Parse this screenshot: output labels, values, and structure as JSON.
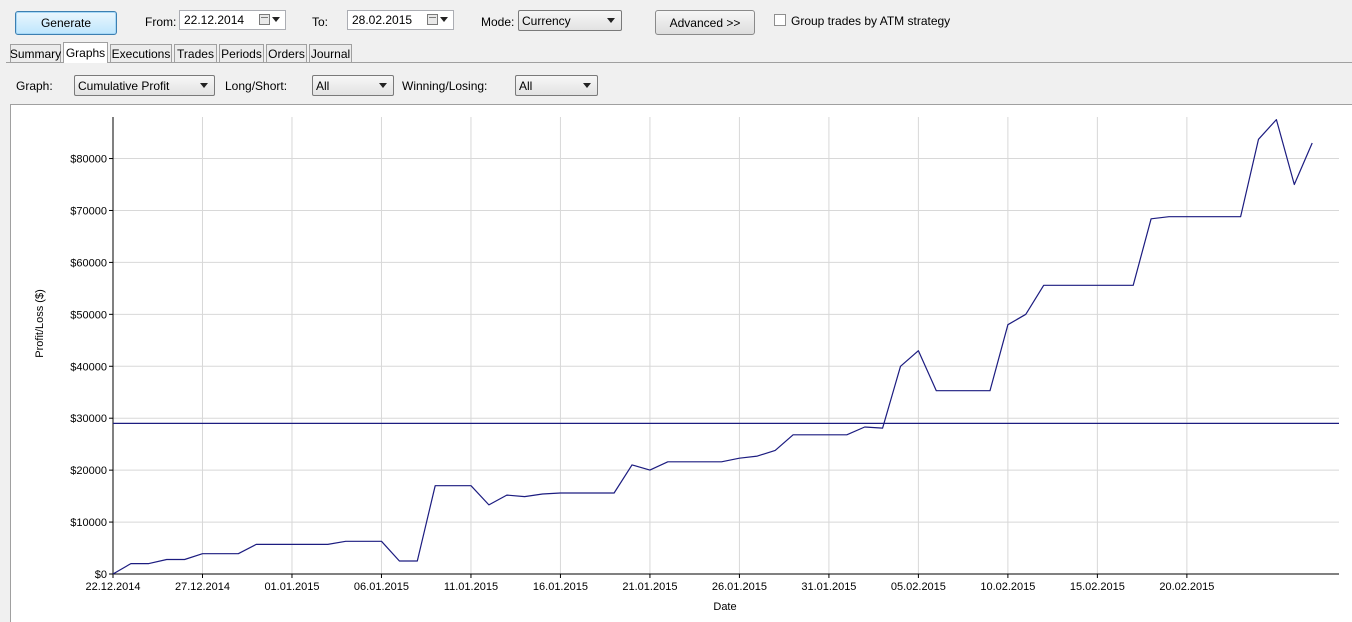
{
  "toolbar": {
    "generate_label": "Generate",
    "from_label": "From:",
    "from_value": "22.12.2014",
    "to_label": "To:",
    "to_value": "28.02.2015",
    "mode_label": "Mode:",
    "mode_value": "Currency",
    "advanced_label": "Advanced >>",
    "group_trades_label": "Group trades by ATM strategy"
  },
  "tabs": [
    {
      "label": "Summary",
      "active": false
    },
    {
      "label": "Graphs",
      "active": true
    },
    {
      "label": "Executions",
      "active": false
    },
    {
      "label": "Trades",
      "active": false
    },
    {
      "label": "Periods",
      "active": false
    },
    {
      "label": "Orders",
      "active": false
    },
    {
      "label": "Journal",
      "active": false
    }
  ],
  "filters": {
    "graph_label": "Graph:",
    "graph_value": "Cumulative Profit",
    "longshort_label": "Long/Short:",
    "longshort_value": "All",
    "winlose_label": "Winning/Losing:",
    "winlose_value": "All"
  },
  "colors": {
    "series": "#1c1c80",
    "grid": "#d8d8d8"
  },
  "chart_data": {
    "type": "line",
    "xlabel": "Date",
    "ylabel": "Profit/Loss ($)",
    "x_start": "22.12.2014",
    "x_end": "28.02.2015",
    "x_ticks": [
      "22.12.2014",
      "27.12.2014",
      "01.01.2015",
      "06.01.2015",
      "11.01.2015",
      "16.01.2015",
      "21.01.2015",
      "26.01.2015",
      "31.01.2015",
      "05.02.2015",
      "10.02.2015",
      "15.02.2015",
      "20.02.2015"
    ],
    "y_ticks": [
      "$0",
      "$10000",
      "$20000",
      "$30000",
      "$40000",
      "$50000",
      "$60000",
      "$70000",
      "$80000"
    ],
    "ylim": [
      0,
      88000
    ],
    "grid": true,
    "horizontal_line": 29000,
    "series": [
      {
        "points": [
          [
            "22.12.2014",
            0
          ],
          [
            "23.12.2014",
            2000
          ],
          [
            "24.12.2014",
            2000
          ],
          [
            "25.12.2014",
            2800
          ],
          [
            "26.12.2014",
            2800
          ],
          [
            "27.12.2014",
            3900
          ],
          [
            "28.12.2014",
            3900
          ],
          [
            "29.12.2014",
            3900
          ],
          [
            "30.12.2014",
            5700
          ],
          [
            "31.12.2014",
            5700
          ],
          [
            "01.01.2015",
            5700
          ],
          [
            "02.01.2015",
            5700
          ],
          [
            "03.01.2015",
            5700
          ],
          [
            "04.01.2015",
            6300
          ],
          [
            "05.01.2015",
            6300
          ],
          [
            "06.01.2015",
            6300
          ],
          [
            "07.01.2015",
            2500
          ],
          [
            "08.01.2015",
            2500
          ],
          [
            "09.01.2015",
            17000
          ],
          [
            "10.01.2015",
            17000
          ],
          [
            "11.01.2015",
            17000
          ],
          [
            "12.01.2015",
            13300
          ],
          [
            "13.01.2015",
            15200
          ],
          [
            "14.01.2015",
            14900
          ],
          [
            "15.01.2015",
            15400
          ],
          [
            "16.01.2015",
            15600
          ],
          [
            "17.01.2015",
            15600
          ],
          [
            "18.01.2015",
            15600
          ],
          [
            "19.01.2015",
            15600
          ],
          [
            "20.01.2015",
            21000
          ],
          [
            "21.01.2015",
            20000
          ],
          [
            "22.01.2015",
            21600
          ],
          [
            "23.01.2015",
            21600
          ],
          [
            "24.01.2015",
            21600
          ],
          [
            "25.01.2015",
            21600
          ],
          [
            "26.01.2015",
            22300
          ],
          [
            "27.01.2015",
            22700
          ],
          [
            "28.01.2015",
            23800
          ],
          [
            "29.01.2015",
            26800
          ],
          [
            "30.01.2015",
            26800
          ],
          [
            "31.01.2015",
            26800
          ],
          [
            "01.02.2015",
            26800
          ],
          [
            "02.02.2015",
            28300
          ],
          [
            "03.02.2015",
            28100
          ],
          [
            "04.02.2015",
            40000
          ],
          [
            "05.02.2015",
            43000
          ],
          [
            "06.02.2015",
            35300
          ],
          [
            "07.02.2015",
            35300
          ],
          [
            "08.02.2015",
            35300
          ],
          [
            "09.02.2015",
            35300
          ],
          [
            "10.02.2015",
            48000
          ],
          [
            "11.02.2015",
            50000
          ],
          [
            "12.02.2015",
            55600
          ],
          [
            "13.02.2015",
            55600
          ],
          [
            "14.02.2015",
            55600
          ],
          [
            "15.02.2015",
            55600
          ],
          [
            "16.02.2015",
            55600
          ],
          [
            "17.02.2015",
            55600
          ],
          [
            "18.02.2015",
            68400
          ],
          [
            "19.02.2015",
            68800
          ],
          [
            "20.02.2015",
            68800
          ],
          [
            "21.02.2015",
            68800
          ],
          [
            "22.02.2015",
            68800
          ],
          [
            "23.02.2015",
            68800
          ],
          [
            "24.02.2015",
            83700
          ],
          [
            "25.02.2015",
            87500
          ],
          [
            "26.02.2015",
            75000
          ],
          [
            "27.02.2015",
            83000
          ]
        ]
      }
    ]
  }
}
